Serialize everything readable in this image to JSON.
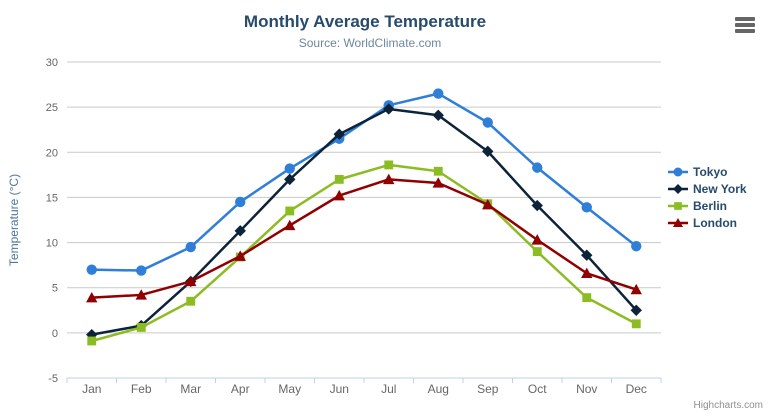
{
  "chart": {
    "title": "Monthly Average Temperature",
    "subtitle": "Source: WorldClimate.com",
    "credit": "Highcharts.com",
    "context_menu_icon": "hamburger-icon"
  },
  "colors": {
    "title": "#274b6d",
    "subtitle": "#6d869f",
    "axis_title": "#4d759e",
    "tick_label": "#666666",
    "grid_line": "#c9c9c9",
    "axis_line": "#c0d0e0",
    "legend_text": "#274b6d",
    "credit_text": "#909090",
    "menu_icon": "#666666"
  },
  "chart_data": {
    "type": "line",
    "title": "Monthly Average Temperature",
    "subtitle": "Source: WorldClimate.com",
    "categories": [
      "Jan",
      "Feb",
      "Mar",
      "Apr",
      "May",
      "Jun",
      "Jul",
      "Aug",
      "Sep",
      "Oct",
      "Nov",
      "Dec"
    ],
    "series": [
      {
        "name": "Tokyo",
        "color": "#2f7ed8",
        "marker": "circle",
        "values": [
          7.0,
          6.9,
          9.5,
          14.5,
          18.2,
          21.5,
          25.2,
          26.5,
          23.3,
          18.3,
          13.9,
          9.6
        ]
      },
      {
        "name": "New York",
        "color": "#0d233a",
        "marker": "diamond",
        "values": [
          -0.2,
          0.8,
          5.7,
          11.3,
          17.0,
          22.0,
          24.8,
          24.1,
          20.1,
          14.1,
          8.6,
          2.5
        ]
      },
      {
        "name": "Berlin",
        "color": "#8bbc21",
        "marker": "square",
        "values": [
          -0.9,
          0.6,
          3.5,
          8.4,
          13.5,
          17.0,
          18.6,
          17.9,
          14.3,
          9.0,
          3.9,
          1.0
        ]
      },
      {
        "name": "London",
        "color": "#910000",
        "marker": "triangle",
        "values": [
          3.9,
          4.2,
          5.7,
          8.5,
          11.9,
          15.2,
          17.0,
          16.6,
          14.2,
          10.3,
          6.6,
          4.8
        ]
      }
    ],
    "xlabel": "",
    "ylabel": "Temperature (°C)",
    "ylim": [
      -5,
      30
    ],
    "ytick_step": 5,
    "yticks": [
      -5,
      0,
      5,
      10,
      15,
      20,
      25,
      30
    ],
    "grid": true,
    "legend_position": "right"
  }
}
